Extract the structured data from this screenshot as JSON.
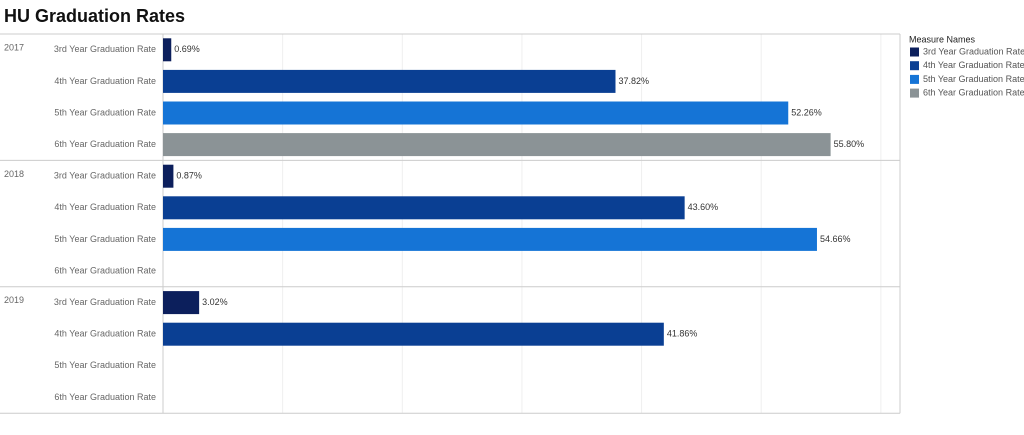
{
  "chart_data": {
    "type": "grouped-hbar",
    "title": "HU Graduation Rates",
    "categories": [
      "2017",
      "2018",
      "2019"
    ],
    "series": [
      {
        "name": "3rd Year Graduation Rate",
        "color": "#0c1f5c",
        "values": [
          0.69,
          0.87,
          3.02
        ],
        "value_labels": [
          "0.69%",
          "0.87%",
          "3.02%"
        ]
      },
      {
        "name": "4th Year Graduation Rate",
        "color": "#0a3f93",
        "values": [
          37.82,
          43.6,
          41.86
        ],
        "value_labels": [
          "37.82%",
          "43.60%",
          "41.86%"
        ]
      },
      {
        "name": "5th Year Graduation Rate",
        "color": "#1574d6",
        "values": [
          52.26,
          54.66,
          null
        ],
        "value_labels": [
          "52.26%",
          "54.66%",
          null
        ]
      },
      {
        "name": "6th Year Graduation Rate",
        "color": "#8b9396",
        "values": [
          55.8,
          null,
          null
        ],
        "value_labels": [
          "55.80%",
          null,
          null
        ]
      }
    ],
    "legend_title": "Measure Names",
    "legend": "right",
    "xlim": [
      0,
      61.6
    ],
    "xticks": [
      0,
      10,
      20,
      30,
      40,
      50,
      60
    ],
    "grid": true,
    "tick_labels": false
  }
}
